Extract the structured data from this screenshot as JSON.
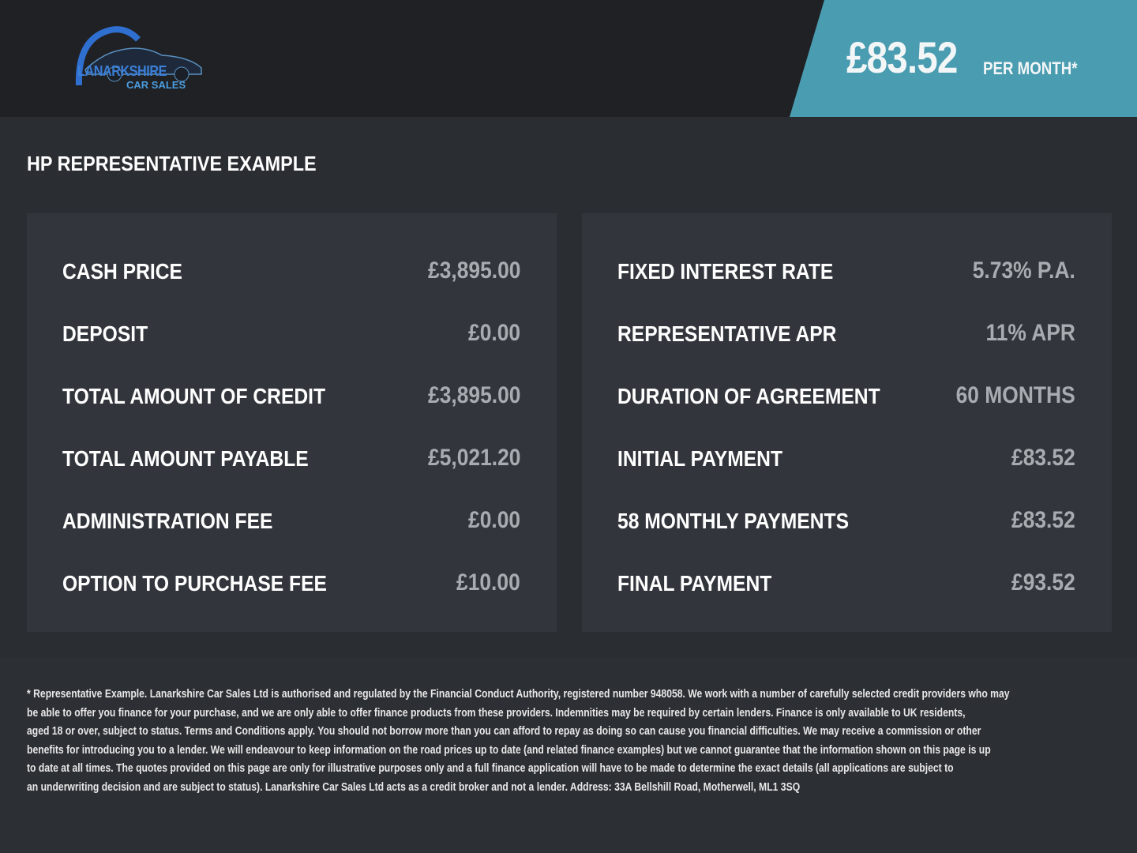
{
  "header": {
    "logo": {
      "text_main": "LANARKSHIRE",
      "text_sub": "CAR SALES"
    },
    "monthly_price": "£83.52",
    "monthly_suffix": "PER MONTH*",
    "accent_color": "#4a9cb0"
  },
  "section_title": "HP REPRESENTATIVE EXAMPLE",
  "left_panel": [
    {
      "label": "CASH PRICE",
      "value": "£3,895.00"
    },
    {
      "label": "DEPOSIT",
      "value": "£0.00"
    },
    {
      "label": "TOTAL AMOUNT OF CREDIT",
      "value": "£3,895.00"
    },
    {
      "label": "TOTAL AMOUNT PAYABLE",
      "value": "£5,021.20"
    },
    {
      "label": "ADMINISTRATION FEE",
      "value": "£0.00"
    },
    {
      "label": "OPTION TO PURCHASE FEE",
      "value": "£10.00"
    }
  ],
  "right_panel": [
    {
      "label": "FIXED INTEREST RATE",
      "value": "5.73% P.A."
    },
    {
      "label": "REPRESENTATIVE APR",
      "value": "11% APR"
    },
    {
      "label": "DURATION OF AGREEMENT",
      "value": "60 MONTHS"
    },
    {
      "label": "INITIAL PAYMENT",
      "value": "£83.52"
    },
    {
      "label": "58 MONTHLY PAYMENTS",
      "value": "£83.52"
    },
    {
      "label": "FINAL PAYMENT",
      "value": "£93.52"
    }
  ],
  "disclaimer_lines": [
    "* Representative Example. Lanarkshire Car Sales Ltd is authorised and regulated by the Financial Conduct Authority, registered number 948058. We work with a number of carefully selected credit providers who may",
    "be able to offer you finance for your purchase, and we are only able to offer finance products from these providers. Indemnities may be required by certain lenders. Finance is only available to UK residents,",
    "aged 18 or over, subject to status. Terms and Conditions apply. You should not borrow more than you can afford to repay as doing so can cause you financial difficulties. We may receive a commission or other",
    "benefits for introducing you to a lender. We will endeavour to keep information on the road prices up to date (and related finance examples) but we cannot guarantee that the information shown on this page is up",
    "to date at all times. The quotes provided on this page are only for illustrative purposes only and a full finance application will have to be made to determine the exact details (all applications are subject to",
    "an underwriting decision and are subject to status). Lanarkshire Car Sales Ltd acts as a credit broker and not a lender. Address: 33A Bellshill Road, Motherwell, ML1 3SQ"
  ]
}
